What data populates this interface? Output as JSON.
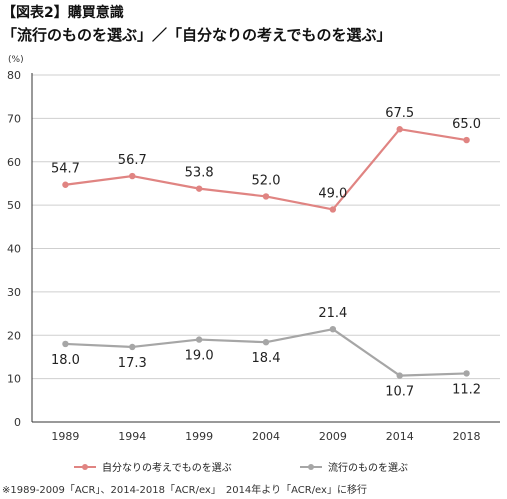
{
  "header": {
    "figure_label": "【図表2】購買意識",
    "title": "「流行のものを選ぶ」／「自分なりの考えでものを選ぶ」"
  },
  "chart_data": {
    "type": "line",
    "categories": [
      "1989",
      "1994",
      "1999",
      "2004",
      "2009",
      "2014",
      "2018"
    ],
    "series": [
      {
        "name": "自分なりの考えでものを選ぶ",
        "color": "#e08482",
        "values": [
          54.7,
          56.7,
          53.8,
          52.0,
          49.0,
          67.5,
          65.0
        ],
        "labels": [
          "54.7",
          "56.7",
          "53.8",
          "52.0",
          "49.0",
          "67.5",
          "65.0"
        ]
      },
      {
        "name": "流行のものを選ぶ",
        "color": "#a6a6a6",
        "values": [
          18.0,
          17.3,
          19.0,
          18.4,
          21.4,
          10.7,
          11.2
        ],
        "labels": [
          "18.0",
          "17.3",
          "19.0",
          "18.4",
          "21.4",
          "10.7",
          "11.2"
        ]
      }
    ],
    "ylabel": "(%)",
    "ylim": [
      0,
      80
    ],
    "yticks": [
      "0",
      "10",
      "20",
      "30",
      "40",
      "50",
      "60",
      "70",
      "80"
    ],
    "grid": true,
    "legend_position": "bottom"
  },
  "note": "※1989-2009「ACR」、2014-2018「ACR/ex」　2014年より「ACR/ex」に移行"
}
